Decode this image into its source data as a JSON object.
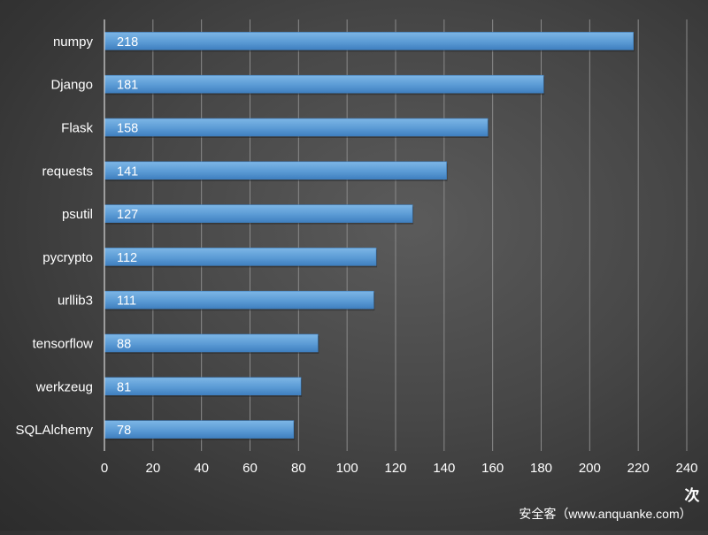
{
  "chart_data": {
    "type": "bar",
    "orientation": "horizontal",
    "title": "",
    "xlabel": "次",
    "ylabel": "",
    "categories": [
      "numpy",
      "Django",
      "Flask",
      "requests",
      "psutil",
      "pycrypto",
      "urllib3",
      "tensorflow",
      "werkzeug",
      "SQLAlchemy"
    ],
    "values": [
      218,
      181,
      158,
      141,
      127,
      112,
      111,
      88,
      81,
      78
    ],
    "xlim": [
      0,
      240
    ],
    "xticks": [
      0,
      20,
      40,
      60,
      80,
      100,
      120,
      140,
      160,
      180,
      200,
      220,
      240
    ],
    "grid": true,
    "data_labels": true,
    "legend": "none"
  },
  "footer": {
    "watermark": "安全客（www.anquanke.com）"
  },
  "colors": {
    "bar": "#5b9bd5",
    "bar_light": "#71acdf",
    "bar_dark": "#3f7fbf",
    "grid": "#8a8a8a",
    "axis": "#d9d9d9",
    "label": "#ffffff",
    "data_label": "#ffffff"
  }
}
